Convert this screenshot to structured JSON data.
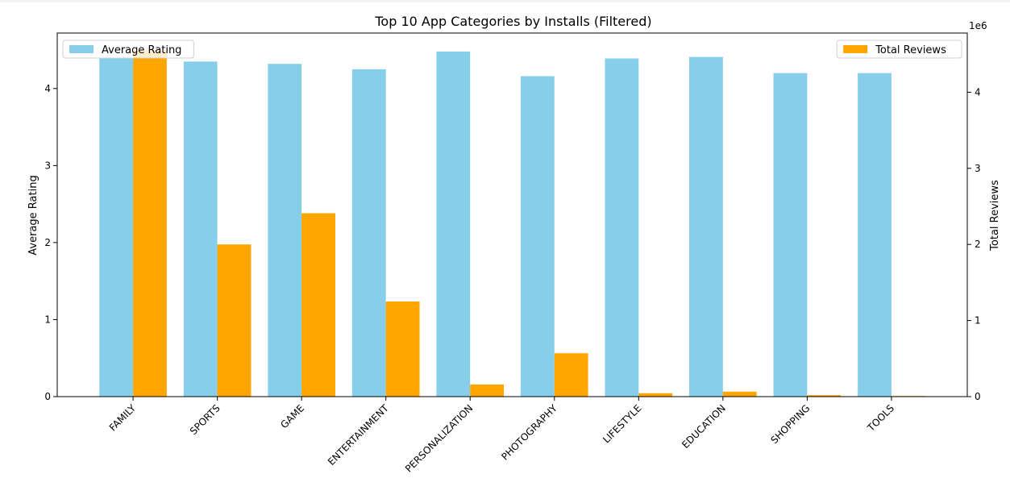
{
  "chart_data": {
    "type": "bar",
    "title": "Top 10 App Categories by Installs (Filtered)",
    "categories": [
      "FAMILY",
      "SPORTS",
      "GAME",
      "ENTERTAINMENT",
      "PERSONALIZATION",
      "PHOTOGRAPHY",
      "LIFESTYLE",
      "EDUCATION",
      "SHOPPING",
      "TOOLS"
    ],
    "series": [
      {
        "name": "Average Rating",
        "axis": "left",
        "color": "#87ceeb",
        "values": [
          4.4,
          4.35,
          4.32,
          4.25,
          4.48,
          4.16,
          4.39,
          4.41,
          4.2,
          4.2
        ]
      },
      {
        "name": "Total Reviews",
        "axis": "right",
        "color": "#ffa500",
        "values": [
          4550000,
          2000000,
          2410000,
          1250000,
          160000,
          570000,
          45000,
          65000,
          20000,
          8000
        ]
      }
    ],
    "ylabel_left": "Average Rating",
    "ylim_left": [
      0,
      4.72
    ],
    "yticks_left": [
      0,
      1,
      2,
      3,
      4
    ],
    "ylabel_right": "Total Reviews",
    "ylim_right": [
      0,
      4777500
    ],
    "yticks_right": [
      0,
      1000000,
      2000000,
      3000000,
      4000000
    ],
    "ytick_labels_right": [
      "0",
      "1",
      "2",
      "3",
      "4"
    ],
    "right_axis_offset_text": "1e6",
    "legend_left_placement": "top-left",
    "legend_right_placement": "top-right",
    "grid": false
  }
}
